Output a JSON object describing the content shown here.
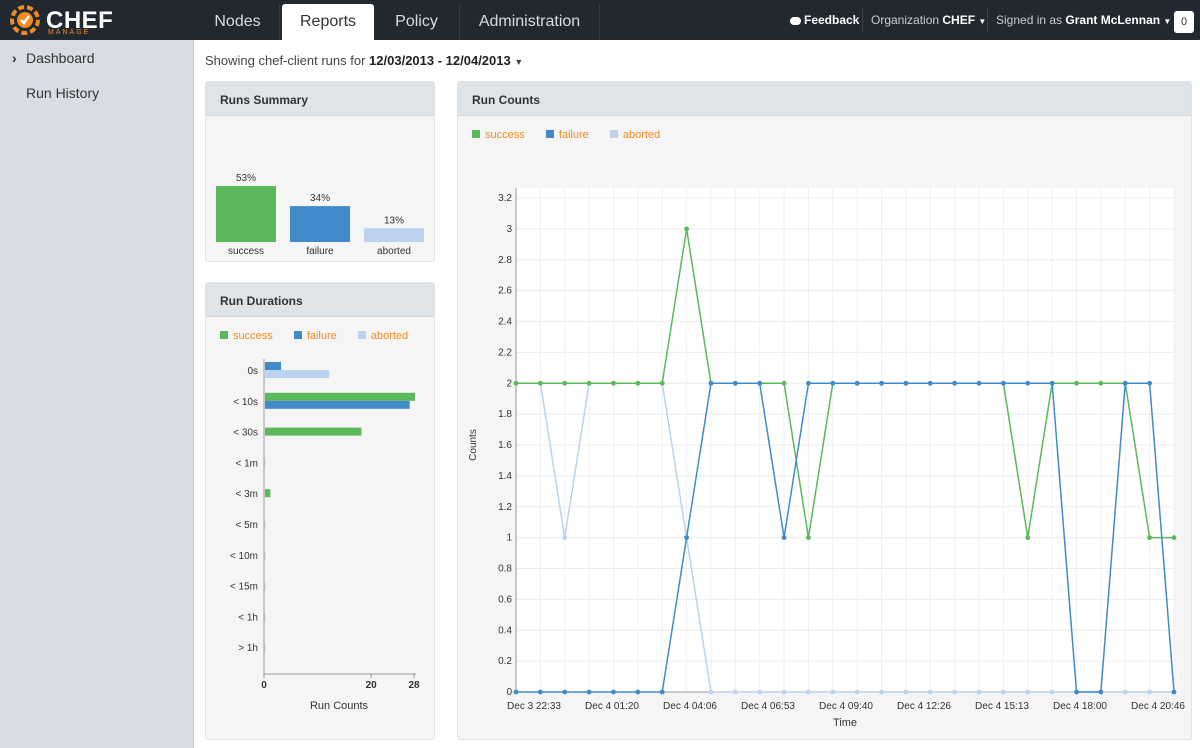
{
  "brand": {
    "name": "CHEF",
    "sub": "MANAGE"
  },
  "tabs": [
    {
      "label": "Nodes",
      "active": false
    },
    {
      "label": "Reports",
      "active": true
    },
    {
      "label": "Policy",
      "active": false
    },
    {
      "label": "Administration",
      "active": false
    }
  ],
  "header": {
    "feedback": "Feedback",
    "org_label": "Organization",
    "org_name": "CHEF",
    "signed_label": "Signed in as",
    "user_name": "Grant McLennan",
    "notifications": "0"
  },
  "sidebar": {
    "items": [
      {
        "label": "Dashboard",
        "expanded": true
      },
      {
        "label": "Run History"
      }
    ]
  },
  "range": {
    "prefix": "Showing chef-client runs for",
    "value": "12/03/2013 - 12/04/2013"
  },
  "colors": {
    "success": "#5cb85c",
    "failure": "#428bca",
    "aborted": "#bcd2ee",
    "legend_text": "#f18b21"
  },
  "runs_summary": {
    "title": "Runs Summary",
    "chart_data": {
      "type": "bar",
      "categories": [
        "success",
        "failure",
        "aborted"
      ],
      "values": [
        53,
        34,
        13
      ],
      "value_labels": [
        "53%",
        "34%",
        "13%"
      ],
      "ylim": [
        0,
        53
      ]
    }
  },
  "run_durations": {
    "title": "Run Durations",
    "legend": [
      "success",
      "failure",
      "aborted"
    ],
    "chart_data": {
      "type": "bar",
      "orientation": "horizontal",
      "categories": [
        "0s",
        "< 10s",
        "< 30s",
        "< 1m",
        "< 3m",
        "< 5m",
        "< 10m",
        "< 15m",
        "< 1h",
        "> 1h"
      ],
      "series": [
        {
          "name": "success",
          "values": [
            0,
            28,
            18,
            0,
            1,
            0,
            0,
            0,
            0,
            0
          ]
        },
        {
          "name": "failure",
          "values": [
            3,
            27,
            0,
            0,
            0,
            0,
            0,
            0,
            0,
            0
          ]
        },
        {
          "name": "aborted",
          "values": [
            12,
            0,
            0,
            0,
            0,
            0,
            0,
            0,
            0,
            0
          ]
        }
      ],
      "xlim": [
        0,
        28
      ],
      "xticks": [
        "0",
        "20",
        "28"
      ],
      "xlabel": "Run Counts"
    }
  },
  "run_counts": {
    "title": "Run Counts",
    "legend": [
      "success",
      "failure",
      "aborted"
    ],
    "chart_data": {
      "type": "line",
      "ylabel": "Counts",
      "xlabel": "Time",
      "ylim": [
        0,
        3.2
      ],
      "yticks": [
        "0",
        "0.2",
        "0.4",
        "0.6",
        "0.8",
        "1",
        "1.2",
        "1.4",
        "1.6",
        "1.8",
        "2",
        "2.2",
        "2.4",
        "2.6",
        "2.8",
        "3",
        "3.2"
      ],
      "xticks": [
        "Dec 3 22:33",
        "Dec 4 01:20",
        "Dec 4 04:06",
        "Dec 4 06:53",
        "Dec 4 09:40",
        "Dec 4 12:26",
        "Dec 4 15:13",
        "Dec 4 18:00",
        "Dec 4 20:46"
      ],
      "series": [
        {
          "name": "success",
          "values": [
            2,
            2,
            2,
            2,
            2,
            2,
            2,
            3,
            2,
            2,
            2,
            2,
            1,
            2,
            2,
            2,
            2,
            2,
            2,
            2,
            2,
            1,
            2,
            2,
            2,
            2,
            1,
            1
          ]
        },
        {
          "name": "failure",
          "values": [
            0,
            0,
            0,
            0,
            0,
            0,
            0,
            1,
            2,
            2,
            2,
            1,
            2,
            2,
            2,
            2,
            2,
            2,
            2,
            2,
            2,
            2,
            2,
            0,
            0,
            2,
            2,
            0
          ]
        },
        {
          "name": "aborted",
          "values": [
            2,
            2,
            1,
            2,
            2,
            2,
            2,
            1,
            0,
            0,
            0,
            0,
            0,
            0,
            0,
            0,
            0,
            0,
            0,
            0,
            0,
            0,
            0,
            0,
            0,
            0,
            0,
            0
          ]
        }
      ]
    }
  }
}
